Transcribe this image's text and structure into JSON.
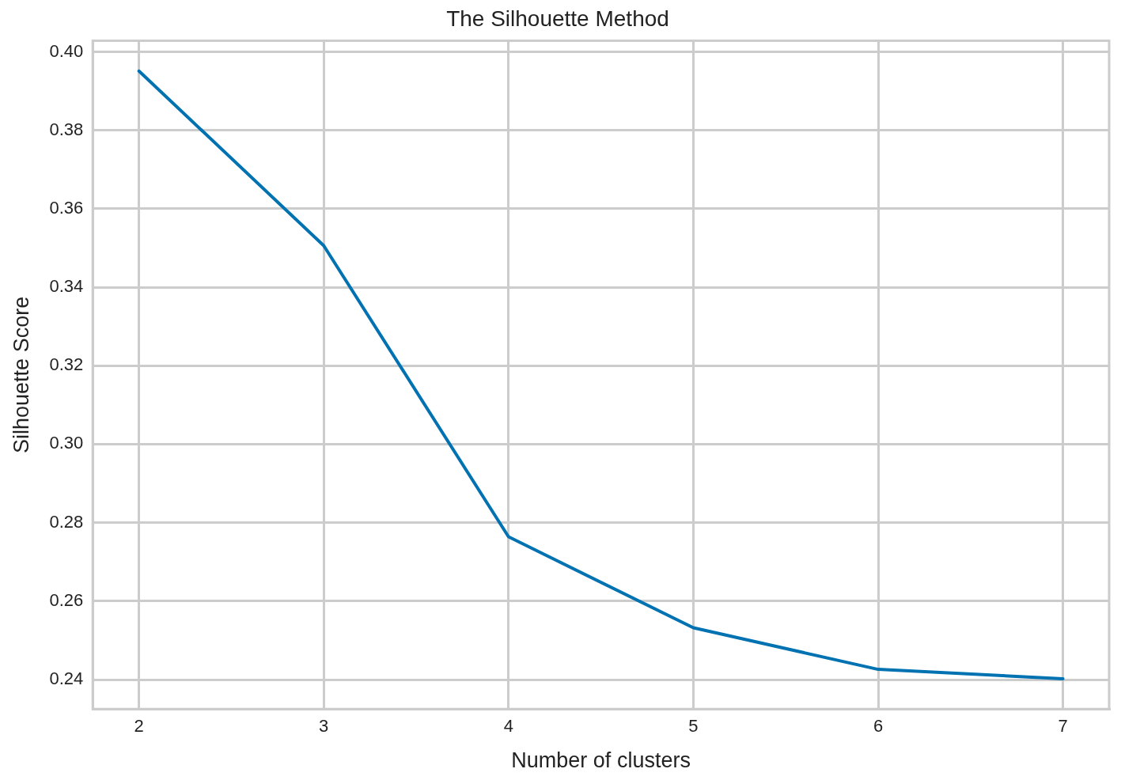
{
  "chart_data": {
    "type": "line",
    "title": "The Silhouette Method",
    "xlabel": "Number of clusters",
    "ylabel": "Silhouette Score",
    "x": [
      2,
      3,
      4,
      5,
      6,
      7
    ],
    "series": [
      {
        "color": "#0072b2",
        "values": [
          0.3951,
          0.3506,
          0.2764,
          0.2532,
          0.2426,
          0.2402
        ]
      }
    ],
    "xlim": [
      1.75,
      7.25
    ],
    "xticks": [
      2,
      3,
      4,
      5,
      6,
      7
    ],
    "ylim": [
      0.2325,
      0.4028
    ],
    "yticks": [
      {
        "value": 0.24,
        "label": "0.24"
      },
      {
        "value": 0.26,
        "label": "0.26"
      },
      {
        "value": 0.28,
        "label": "0.28"
      },
      {
        "value": 0.3,
        "label": "0.30"
      },
      {
        "value": 0.32,
        "label": "0.32"
      },
      {
        "value": 0.34,
        "label": "0.34"
      },
      {
        "value": 0.36,
        "label": "0.36"
      },
      {
        "value": 0.38,
        "label": "0.38"
      },
      {
        "value": 0.4,
        "label": "0.40"
      }
    ],
    "grid": true,
    "legend": false,
    "marker": "none",
    "line_style": "solid"
  }
}
